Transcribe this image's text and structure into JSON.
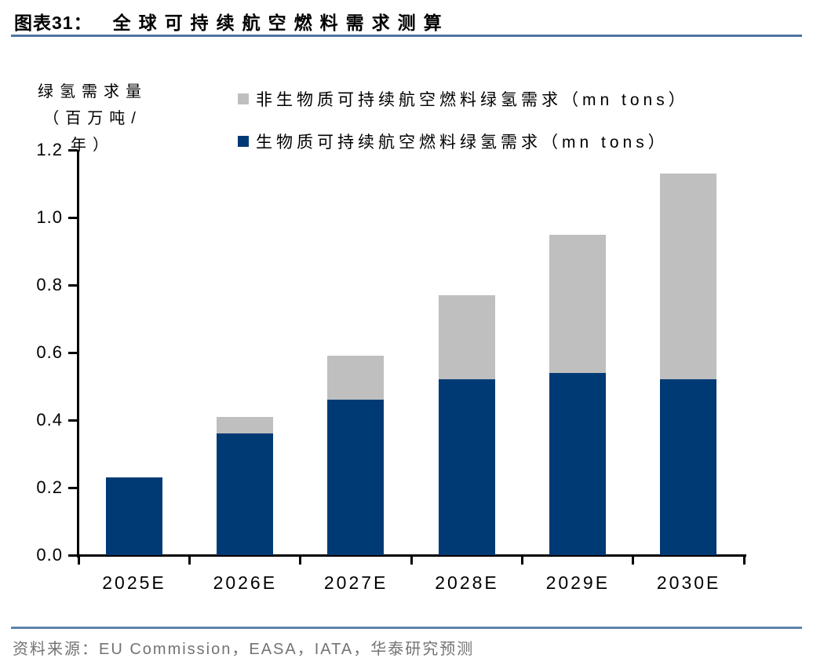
{
  "figure": {
    "label": "图表31：",
    "title": "全球可持续航空燃料需求测算",
    "source": "资料来源：EU Commission，EASA，IATA，华泰研究预测"
  },
  "chart_data": {
    "type": "bar",
    "stacked": true,
    "title": "全球可持续航空燃料需求测算",
    "ylabel": "绿氢需求量（百万吨/年）",
    "ylabel_lines": [
      "绿氢需求量",
      "（百万吨/",
      "年）"
    ],
    "ylim": [
      0,
      1.2
    ],
    "ytick_step": 0.2,
    "yticks": [
      "0.0",
      "0.2",
      "0.4",
      "0.6",
      "0.8",
      "1.0",
      "1.2"
    ],
    "grid": false,
    "legend_position": "top",
    "categories": [
      "2025E",
      "2026E",
      "2027E",
      "2028E",
      "2029E",
      "2030E"
    ],
    "series": [
      {
        "name": "生物质可持续航空燃料绿氢需求（mn tons）",
        "color": "#003a75",
        "values": [
          0.23,
          0.36,
          0.46,
          0.52,
          0.54,
          0.52
        ]
      },
      {
        "name": "非生物质可持续航空燃料绿氢需求（mn tons）",
        "color": "#bfbfbf",
        "values": [
          0,
          0.05,
          0.13,
          0.25,
          0.41,
          0.61
        ]
      }
    ],
    "totals": [
      0.23,
      0.41,
      0.59,
      0.77,
      0.95,
      1.13
    ],
    "colors": {
      "biomass_bar": "#003a75",
      "non_biomass_bar": "#bfbfbf",
      "header_rule": "#4f74a0",
      "footer_rule": "#5e84ad",
      "source_text": "#737373"
    }
  }
}
